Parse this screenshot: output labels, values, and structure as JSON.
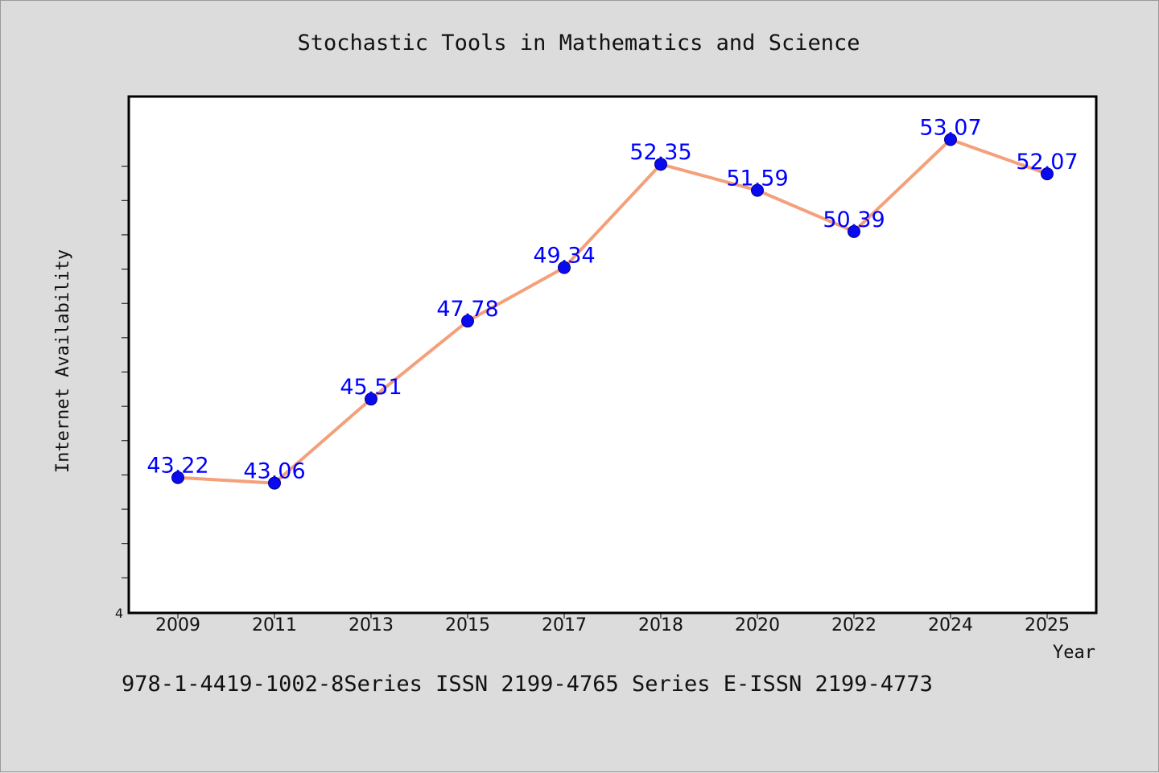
{
  "chart_data": {
    "type": "line",
    "title": "Stochastic Tools in Mathematics and Science",
    "xlabel": "Year",
    "ylabel": "Internet Availability",
    "categories": [
      "2009",
      "2011",
      "2013",
      "2015",
      "2017",
      "2018",
      "2020",
      "2022",
      "2024",
      "2025"
    ],
    "series": [
      {
        "values": [
          43.22,
          43.06,
          45.51,
          47.78,
          49.34,
          52.35,
          51.59,
          50.39,
          53.07,
          52.07
        ],
        "data_labels": [
          "43.22",
          "43.06",
          "45.51",
          "47.78",
          "49.34",
          "52.35",
          "51.59",
          "50.39",
          "53.07",
          "52.07"
        ]
      }
    ],
    "y_tick_label": "4",
    "ylim": [
      39.3,
      54.3
    ],
    "grid": false,
    "legend": "none",
    "colors": {
      "line": "#f4a07a",
      "marker": "#0a0aee",
      "label": "#0000ff",
      "background": "#dcdcdc",
      "plot_background": "#ffffff"
    }
  },
  "footer": {
    "text": "978-1-4419-1002-8Series ISSN 2199-4765 Series E-ISSN 2199-4773"
  }
}
